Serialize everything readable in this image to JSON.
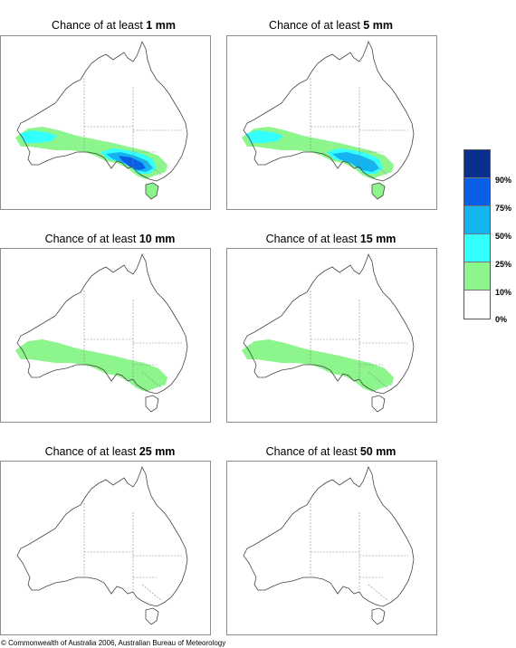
{
  "panels": [
    {
      "title_prefix": "Chance of at least ",
      "title_amount": "1 mm",
      "level": 4
    },
    {
      "title_prefix": "Chance of at least ",
      "title_amount": "5 mm",
      "level": 3
    },
    {
      "title_prefix": "Chance of at least ",
      "title_amount": "10 mm",
      "level": 2
    },
    {
      "title_prefix": "Chance of at least ",
      "title_amount": "15 mm",
      "level": 1
    },
    {
      "title_prefix": "Chance of at least ",
      "title_amount": "25 mm",
      "level": 0
    },
    {
      "title_prefix": "Chance of at least ",
      "title_amount": "50 mm",
      "level": 0
    }
  ],
  "legend": {
    "labels": [
      "90%",
      "75%",
      "50%",
      "25%",
      "10%",
      "0%"
    ],
    "colors": [
      "#0a2f8f",
      "#0a5fe6",
      "#14b4f0",
      "#33ffff",
      "#8cf58c",
      "#ffffff"
    ]
  },
  "copyright": "© Commonwealth of Australia 2006, Australian Bureau of Meteorology"
}
